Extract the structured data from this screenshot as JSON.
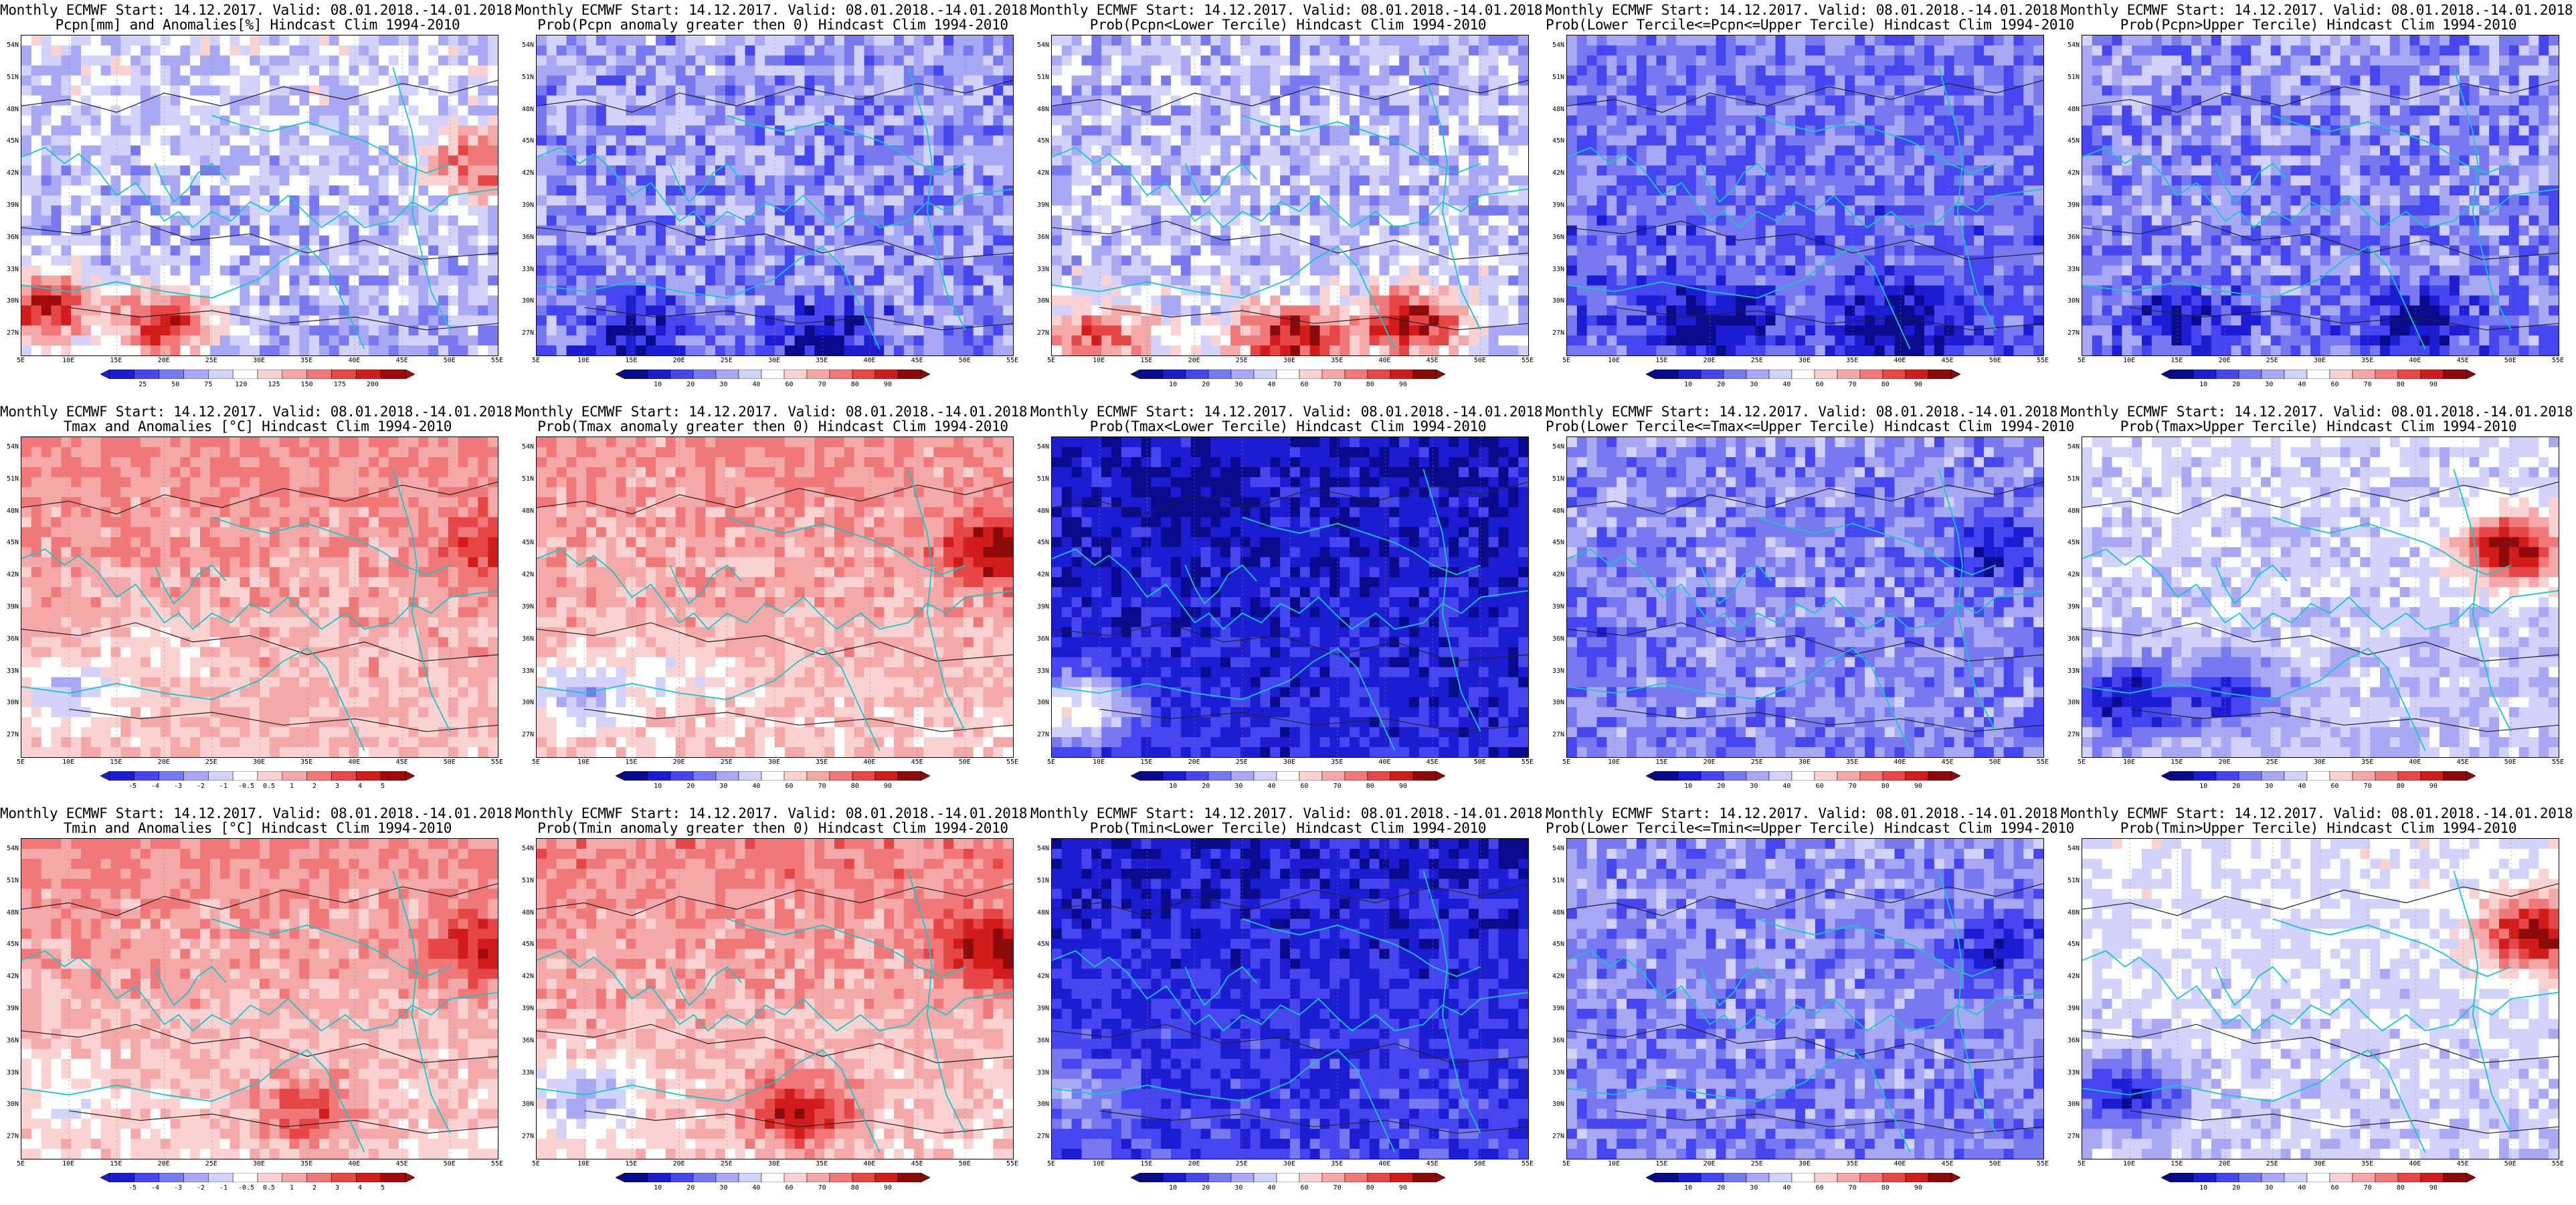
{
  "chart_data": {
    "type": "heatmap",
    "layout": "grid of 3 rows x 5 columns of map panels",
    "x_ticks": [
      "5E",
      "10E",
      "15E",
      "20E",
      "25E",
      "30E",
      "35E",
      "40E",
      "45E",
      "50E",
      "55E"
    ],
    "y_ticks": [
      "54N",
      "51N",
      "48N",
      "45N",
      "42N",
      "39N",
      "36N",
      "33N",
      "30N",
      "27N"
    ],
    "xlim": [
      5,
      55
    ],
    "ylim": [
      25,
      55
    ],
    "palettes": {
      "blue_red": [
        "#0a0a8c",
        "#1c1cd2",
        "#4646f0",
        "#7878f0",
        "#a8a8f5",
        "#d2d2fa",
        "#ffffff",
        "#fad2d2",
        "#f5a8a8",
        "#f07878",
        "#e64646",
        "#d21c1c",
        "#8c0a0a"
      ],
      "anom": [
        "#1c1cd2",
        "#4646f0",
        "#7878f0",
        "#a8a8f5",
        "#d2d2fa",
        "#ffffff",
        "#fad2d2",
        "#f5a8a8",
        "#f07878",
        "#e64646",
        "#d21c1c",
        "#a00a0a"
      ]
    },
    "panels": [
      {
        "row": 0,
        "col": 0,
        "title_line1": "Monthly ECMWF Start: 14.12.2017. Valid: 08.01.2018.-14.01.2018.",
        "title_line2": "Pcpn[mm] and Anomalies[%] Hindcast Clim 1994-2010",
        "variable": "pcpn_anom",
        "colorbar_labels": [
          "25",
          "50",
          "75",
          "120",
          "125",
          "150",
          "175",
          "200"
        ],
        "pattern": {
          "base": 0.35,
          "north_gradient": 0.1,
          "hot_spots": [
            [
              0.05,
              0.85,
              0.9
            ],
            [
              0.3,
              0.9,
              0.9
            ],
            [
              0.97,
              0.4,
              0.8
            ]
          ],
          "noise": 0.25
        }
      },
      {
        "row": 0,
        "col": 1,
        "title_line1": "Monthly ECMWF Start: 14.12.2017. Valid: 08.01.2018.-14.01.2018.",
        "title_line2": "Prob(Pcpn anomaly greater then 0) Hindcast Clim 1994-2010",
        "variable": "prob",
        "colorbar_labels": [
          "10",
          "20",
          "30",
          "40",
          "60",
          "70",
          "80",
          "90"
        ],
        "pattern": {
          "base": 0.32,
          "north_gradient": 0.05,
          "hot_spots": [
            [
              0.2,
              0.95,
              0.05
            ],
            [
              0.6,
              0.95,
              0.05
            ]
          ],
          "noise": 0.25
        }
      },
      {
        "row": 0,
        "col": 2,
        "title_line1": "Monthly ECMWF Start: 14.12.2017. Valid: 08.01.2018.-14.01.2018.",
        "title_line2": "Prob(Pcpn<Lower Tercile) Hindcast Clim 1994-2010",
        "variable": "prob",
        "colorbar_labels": [
          "10",
          "20",
          "30",
          "40",
          "60",
          "70",
          "80",
          "90"
        ],
        "pattern": {
          "base": 0.4,
          "north_gradient": -0.05,
          "hot_spots": [
            [
              0.5,
              0.95,
              0.95
            ],
            [
              0.75,
              0.9,
              0.95
            ],
            [
              0.1,
              0.95,
              0.8
            ]
          ],
          "noise": 0.25
        }
      },
      {
        "row": 0,
        "col": 3,
        "title_line1": "Monthly ECMWF Start: 14.12.2017. Valid: 08.01.2018.-14.01.2018.",
        "title_line2": "Prob(Lower Tercile<=Pcpn<=Upper Tercile) Hindcast Clim 1994-2010",
        "variable": "prob",
        "colorbar_labels": [
          "10",
          "20",
          "30",
          "40",
          "60",
          "70",
          "80",
          "90"
        ],
        "pattern": {
          "base": 0.25,
          "north_gradient": 0.05,
          "hot_spots": [
            [
              0.3,
              0.9,
              0.0
            ],
            [
              0.7,
              0.9,
              0.0
            ]
          ],
          "noise": 0.2
        }
      },
      {
        "row": 0,
        "col": 4,
        "title_line1": "Monthly ECMWF Start: 14.12.2017. Valid: 08.01.2018.-14.01.2018.",
        "title_line2": "Prob(Pcpn>Upper Tercile) Hindcast Clim 1994-2010",
        "variable": "prob",
        "colorbar_labels": [
          "10",
          "20",
          "30",
          "40",
          "60",
          "70",
          "80",
          "90"
        ],
        "pattern": {
          "base": 0.3,
          "north_gradient": 0.05,
          "hot_spots": [
            [
              0.2,
              0.9,
              0.1
            ],
            [
              0.7,
              0.9,
              0.1
            ]
          ],
          "noise": 0.25
        }
      },
      {
        "row": 1,
        "col": 0,
        "title_line1": "Monthly ECMWF Start: 14.12.2017. Valid: 08.01.2018.-14.01.2018.",
        "title_line2": "Tmax and Anomalies [°C] Hindcast Clim 1994-2010",
        "variable": "temp_anom",
        "colorbar_labels": [
          "-5",
          "-4",
          "-3",
          "-2",
          "-1",
          "-0.5",
          "0.5",
          "1",
          "2",
          "3",
          "4",
          "5"
        ],
        "pattern": {
          "base": 0.62,
          "north_gradient": 0.1,
          "hot_spots": [
            [
              0.98,
              0.35,
              0.85
            ],
            [
              0.1,
              0.8,
              0.35
            ],
            [
              0.3,
              0.65,
              0.5
            ]
          ],
          "noise": 0.15
        }
      },
      {
        "row": 1,
        "col": 1,
        "title_line1": "Monthly ECMWF Start: 14.12.2017. Valid: 08.01.2018.-14.01.2018.",
        "title_line2": "Prob(Tmax anomaly greater then 0) Hindcast Clim 1994-2010",
        "variable": "prob",
        "colorbar_labels": [
          "10",
          "20",
          "30",
          "40",
          "60",
          "70",
          "80",
          "90"
        ],
        "pattern": {
          "base": 0.64,
          "north_gradient": 0.1,
          "hot_spots": [
            [
              0.97,
              0.35,
              0.98
            ],
            [
              0.1,
              0.8,
              0.35
            ],
            [
              0.3,
              0.75,
              0.5
            ]
          ],
          "noise": 0.15
        }
      },
      {
        "row": 1,
        "col": 2,
        "title_line1": "Monthly ECMWF Start: 14.12.2017. Valid: 08.01.2018.-14.01.2018.",
        "title_line2": "Prob(Tmax<Lower Tercile) Hindcast Clim 1994-2010",
        "variable": "prob",
        "colorbar_labels": [
          "10",
          "20",
          "30",
          "40",
          "60",
          "70",
          "80",
          "90"
        ],
        "pattern": {
          "base": 0.12,
          "north_gradient": -0.05,
          "hot_spots": [
            [
              0.05,
              0.85,
              0.55
            ],
            [
              0.3,
              0.2,
              0.02
            ]
          ],
          "noise": 0.15
        }
      },
      {
        "row": 1,
        "col": 3,
        "title_line1": "Monthly ECMWF Start: 14.12.2017. Valid: 08.01.2018.-14.01.2018.",
        "title_line2": "Prob(Lower Tercile<=Tmax<=Upper Tercile) Hindcast Clim 1994-2010",
        "variable": "prob",
        "colorbar_labels": [
          "10",
          "20",
          "30",
          "40",
          "60",
          "70",
          "80",
          "90"
        ],
        "pattern": {
          "base": 0.3,
          "north_gradient": 0.02,
          "hot_spots": [
            [
              0.9,
              0.35,
              0.1
            ],
            [
              0.1,
              0.6,
              0.25
            ]
          ],
          "noise": 0.2
        }
      },
      {
        "row": 1,
        "col": 4,
        "title_line1": "Monthly ECMWF Start: 14.12.2017. Valid: 08.01.2018.-14.01.2018.",
        "title_line2": "Prob(Tmax>Upper Tercile) Hindcast Clim 1994-2010",
        "variable": "prob",
        "colorbar_labels": [
          "10",
          "20",
          "30",
          "40",
          "60",
          "70",
          "80",
          "90"
        ],
        "pattern": {
          "base": 0.42,
          "north_gradient": 0.05,
          "hot_spots": [
            [
              0.9,
              0.35,
              0.98
            ],
            [
              0.1,
              0.82,
              0.05
            ],
            [
              0.3,
              0.8,
              0.15
            ]
          ],
          "noise": 0.15
        }
      },
      {
        "row": 2,
        "col": 0,
        "title_line1": "Monthly ECMWF Start: 14.12.2017. Valid: 08.01.2018.-14.01.2018.",
        "title_line2": "Tmin and Anomalies [°C] Hindcast Clim 1994-2010",
        "variable": "temp_anom",
        "colorbar_labels": [
          "-5",
          "-4",
          "-3",
          "-2",
          "-1",
          "-0.5",
          "0.5",
          "1",
          "2",
          "3",
          "4",
          "5"
        ],
        "pattern": {
          "base": 0.6,
          "north_gradient": 0.15,
          "hot_spots": [
            [
              0.97,
              0.35,
              0.9
            ],
            [
              0.1,
              0.8,
              0.45
            ],
            [
              0.6,
              0.85,
              0.8
            ]
          ],
          "noise": 0.15
        }
      },
      {
        "row": 2,
        "col": 1,
        "title_line1": "Monthly ECMWF Start: 14.12.2017. Valid: 08.01.2018.-14.01.2018.",
        "title_line2": "Prob(Tmin anomaly greater then 0) Hindcast Clim 1994-2010",
        "variable": "prob",
        "colorbar_labels": [
          "10",
          "20",
          "30",
          "40",
          "60",
          "70",
          "80",
          "90"
        ],
        "pattern": {
          "base": 0.64,
          "north_gradient": 0.15,
          "hot_spots": [
            [
              0.97,
              0.35,
              0.98
            ],
            [
              0.1,
              0.8,
              0.35
            ],
            [
              0.55,
              0.85,
              0.9
            ]
          ],
          "noise": 0.15
        }
      },
      {
        "row": 2,
        "col": 2,
        "title_line1": "Monthly ECMWF Start: 14.12.2017. Valid: 08.01.2018.-14.01.2018.",
        "title_line2": "Prob(Tmin<Lower Tercile) Hindcast Clim 1994-2010",
        "variable": "prob",
        "colorbar_labels": [
          "10",
          "20",
          "30",
          "40",
          "60",
          "70",
          "80",
          "90"
        ],
        "pattern": {
          "base": 0.15,
          "north_gradient": -0.08,
          "hot_spots": [
            [
              0.05,
              0.8,
              0.35
            ]
          ],
          "noise": 0.15
        }
      },
      {
        "row": 2,
        "col": 3,
        "title_line1": "Monthly ECMWF Start: 14.12.2017. Valid: 08.01.2018.-14.01.2018.",
        "title_line2": "Prob(Lower Tercile<=Tmin<=Upper Tercile) Hindcast Clim 1994-2010",
        "variable": "prob",
        "colorbar_labels": [
          "10",
          "20",
          "30",
          "40",
          "60",
          "70",
          "80",
          "90"
        ],
        "pattern": {
          "base": 0.3,
          "north_gradient": 0.02,
          "hot_spots": [
            [
              0.9,
              0.35,
              0.1
            ]
          ],
          "noise": 0.2
        }
      },
      {
        "row": 2,
        "col": 4,
        "title_line1": "Monthly ECMWF Start: 14.12.2017. Valid: 08.01.2018.-14.01.2018.",
        "title_line2": "Prob(Tmin>Upper Tercile) Hindcast Clim 1994-2010",
        "variable": "prob",
        "colorbar_labels": [
          "10",
          "20",
          "30",
          "40",
          "60",
          "70",
          "80",
          "90"
        ],
        "pattern": {
          "base": 0.45,
          "north_gradient": 0.05,
          "hot_spots": [
            [
              0.95,
              0.3,
              0.98
            ],
            [
              0.1,
              0.8,
              0.1
            ]
          ],
          "noise": 0.15
        }
      }
    ]
  }
}
